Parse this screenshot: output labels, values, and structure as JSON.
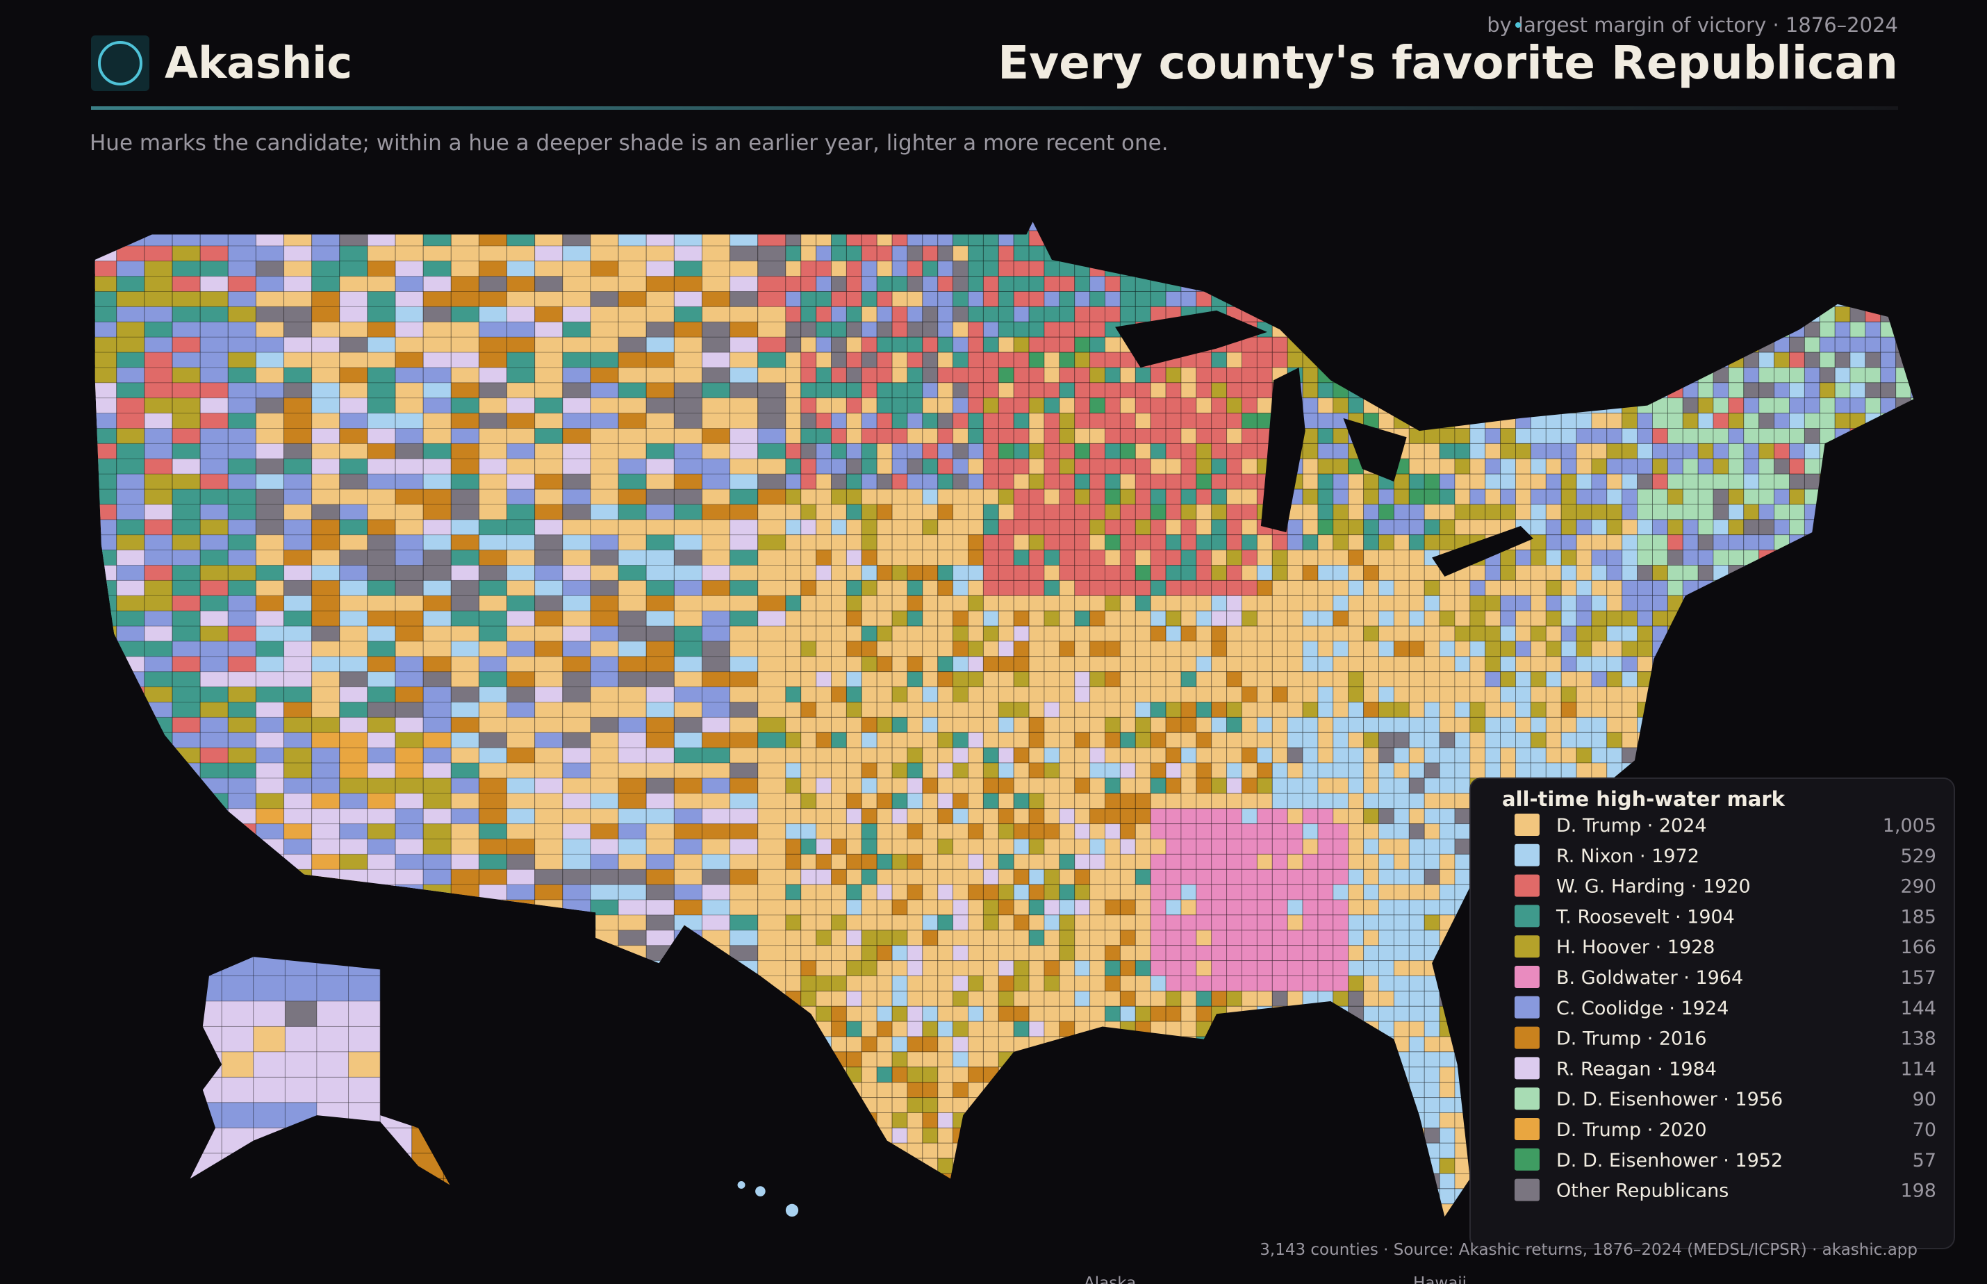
{
  "header": {
    "brand": "Akashic",
    "title": "Every county's favorite Republican",
    "subtitle": "by largest margin of victory · 1876–2024",
    "description": "Hue marks the candidate; within a hue a deeper shade is an earlier year, lighter a more recent one."
  },
  "legend": {
    "title": "all-time high-water mark",
    "items": [
      {
        "label": "D. Trump · 2024",
        "count": "1,005",
        "color": "#f2c67e"
      },
      {
        "label": "R. Nixon · 1972",
        "count": "529",
        "color": "#a9d2f0"
      },
      {
        "label": "W. G. Harding · 1920",
        "count": "290",
        "color": "#e06a68"
      },
      {
        "label": "T. Roosevelt · 1904",
        "count": "185",
        "color": "#3f9a8c"
      },
      {
        "label": "H. Hoover · 1928",
        "count": "166",
        "color": "#b5a22a"
      },
      {
        "label": "B. Goldwater · 1964",
        "count": "157",
        "color": "#e98bbf"
      },
      {
        "label": "C. Coolidge · 1924",
        "count": "144",
        "color": "#8899dd"
      },
      {
        "label": "D. Trump · 2016",
        "count": "138",
        "color": "#c9821e"
      },
      {
        "label": "R. Reagan · 1984",
        "count": "114",
        "color": "#dccbee"
      },
      {
        "label": "D. D. Eisenhower · 1956",
        "count": "90",
        "color": "#a8dcb4"
      },
      {
        "label": "D. Trump · 2020",
        "count": "70",
        "color": "#e9a640"
      },
      {
        "label": "D. D. Eisenhower · 1952",
        "count": "57",
        "color": "#3f9c62"
      },
      {
        "label": "Other Republicans",
        "count": "198",
        "color": "#7a7580"
      }
    ]
  },
  "footer": "3,143 counties · Source: Akashic returns, 1876–2024 (MEDSL/ICPSR) · akashic.app",
  "insets": [
    "Alaska",
    "Hawaii"
  ]
}
